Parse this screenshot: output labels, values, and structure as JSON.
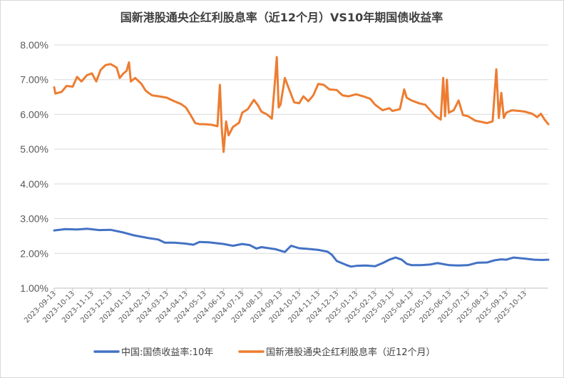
{
  "chart_data": {
    "type": "line",
    "title": "国新港股通央企红利股息率（近12个月）VS10年期国债收益率",
    "xlabel": "",
    "ylabel": "",
    "ylim": [
      1.0,
      8.0
    ],
    "yticks": [
      "8.00%",
      "7.00%",
      "6.00%",
      "5.00%",
      "4.00%",
      "3.00%",
      "2.00%",
      "1.00%"
    ],
    "ytick_values": [
      8,
      7,
      6,
      5,
      4,
      3,
      2,
      1
    ],
    "x_start": "2023-09-13",
    "x_end": "2025-11-20",
    "xticks": [
      "2023-09-13",
      "2023-10-13",
      "2023-11-13",
      "2023-12-13",
      "2024-01-13",
      "2024-02-13",
      "2024-03-13",
      "2024-04-13",
      "2024-05-13",
      "2024-06-13",
      "2024-07-13",
      "2024-08-13",
      "2024-09-13",
      "2024-10-13",
      "2024-11-13",
      "2024-12-13",
      "2025-01-13",
      "2025-02-13",
      "2025-03-13",
      "2025-04-13",
      "2025-05-13",
      "2025-06-13",
      "2025-07-13",
      "2025-08-13",
      "2025-09-13",
      "2025-10-13"
    ],
    "grid": true,
    "legend_position": "bottom",
    "series": [
      {
        "name": "中国:国债收益率:10年",
        "color": "#4472c4",
        "points": [
          [
            "2023-09-13",
            2.66
          ],
          [
            "2023-10-01",
            2.7
          ],
          [
            "2023-10-20",
            2.69
          ],
          [
            "2023-11-05",
            2.71
          ],
          [
            "2023-11-25",
            2.67
          ],
          [
            "2023-12-13",
            2.68
          ],
          [
            "2024-01-01",
            2.61
          ],
          [
            "2024-01-20",
            2.52
          ],
          [
            "2024-02-13",
            2.44
          ],
          [
            "2024-02-28",
            2.4
          ],
          [
            "2024-03-10",
            2.31
          ],
          [
            "2024-03-25",
            2.31
          ],
          [
            "2024-04-13",
            2.28
          ],
          [
            "2024-04-25",
            2.25
          ],
          [
            "2024-05-05",
            2.33
          ],
          [
            "2024-05-20",
            2.32
          ],
          [
            "2024-06-13",
            2.27
          ],
          [
            "2024-06-28",
            2.22
          ],
          [
            "2024-07-13",
            2.27
          ],
          [
            "2024-07-25",
            2.24
          ],
          [
            "2024-08-05",
            2.14
          ],
          [
            "2024-08-13",
            2.18
          ],
          [
            "2024-08-25",
            2.15
          ],
          [
            "2024-09-05",
            2.12
          ],
          [
            "2024-09-20",
            2.04
          ],
          [
            "2024-09-30",
            2.22
          ],
          [
            "2024-10-13",
            2.15
          ],
          [
            "2024-10-28",
            2.13
          ],
          [
            "2024-11-13",
            2.1
          ],
          [
            "2024-11-28",
            2.05
          ],
          [
            "2024-12-05",
            1.96
          ],
          [
            "2024-12-13",
            1.78
          ],
          [
            "2024-12-28",
            1.67
          ],
          [
            "2025-01-05",
            1.62
          ],
          [
            "2025-01-13",
            1.64
          ],
          [
            "2025-01-28",
            1.65
          ],
          [
            "2025-02-13",
            1.63
          ],
          [
            "2025-02-25",
            1.72
          ],
          [
            "2025-03-08",
            1.82
          ],
          [
            "2025-03-18",
            1.88
          ],
          [
            "2025-03-28",
            1.82
          ],
          [
            "2025-04-05",
            1.7
          ],
          [
            "2025-04-13",
            1.66
          ],
          [
            "2025-04-28",
            1.66
          ],
          [
            "2025-05-13",
            1.68
          ],
          [
            "2025-05-25",
            1.72
          ],
          [
            "2025-06-13",
            1.66
          ],
          [
            "2025-06-28",
            1.65
          ],
          [
            "2025-07-13",
            1.66
          ],
          [
            "2025-07-28",
            1.73
          ],
          [
            "2025-08-13",
            1.74
          ],
          [
            "2025-08-25",
            1.8
          ],
          [
            "2025-09-05",
            1.83
          ],
          [
            "2025-09-13",
            1.82
          ],
          [
            "2025-09-25",
            1.88
          ],
          [
            "2025-10-13",
            1.85
          ],
          [
            "2025-10-28",
            1.82
          ],
          [
            "2025-11-10",
            1.81
          ],
          [
            "2025-11-20",
            1.82
          ]
        ]
      },
      {
        "name": "国新港股通央企红利股息率（近12个月）",
        "color": "#ed7d31",
        "points": [
          [
            "2023-09-13",
            6.78
          ],
          [
            "2023-09-15",
            6.6
          ],
          [
            "2023-09-25",
            6.65
          ],
          [
            "2023-10-03",
            6.82
          ],
          [
            "2023-10-13",
            6.8
          ],
          [
            "2023-10-20",
            7.08
          ],
          [
            "2023-10-27",
            6.95
          ],
          [
            "2023-11-05",
            7.13
          ],
          [
            "2023-11-13",
            7.18
          ],
          [
            "2023-11-20",
            6.95
          ],
          [
            "2023-11-27",
            7.28
          ],
          [
            "2023-12-05",
            7.42
          ],
          [
            "2023-12-13",
            7.45
          ],
          [
            "2023-12-18",
            7.4
          ],
          [
            "2023-12-23",
            7.35
          ],
          [
            "2023-12-28",
            7.05
          ],
          [
            "2024-01-03",
            7.18
          ],
          [
            "2024-01-08",
            7.25
          ],
          [
            "2024-01-12",
            7.5
          ],
          [
            "2024-01-15",
            6.95
          ],
          [
            "2024-01-22",
            7.05
          ],
          [
            "2024-02-01",
            6.88
          ],
          [
            "2024-02-08",
            6.68
          ],
          [
            "2024-02-18",
            6.55
          ],
          [
            "2024-03-01",
            6.52
          ],
          [
            "2024-03-13",
            6.48
          ],
          [
            "2024-03-25",
            6.38
          ],
          [
            "2024-04-05",
            6.3
          ],
          [
            "2024-04-13",
            6.2
          ],
          [
            "2024-04-20",
            6.0
          ],
          [
            "2024-04-28",
            5.75
          ],
          [
            "2024-05-05",
            5.72
          ],
          [
            "2024-05-13",
            5.72
          ],
          [
            "2024-05-25",
            5.7
          ],
          [
            "2024-06-03",
            5.66
          ],
          [
            "2024-06-07",
            6.85
          ],
          [
            "2024-06-10",
            5.6
          ],
          [
            "2024-06-13",
            4.92
          ],
          [
            "2024-06-17",
            5.8
          ],
          [
            "2024-06-21",
            5.4
          ],
          [
            "2024-06-28",
            5.64
          ],
          [
            "2024-07-08",
            5.76
          ],
          [
            "2024-07-13",
            6.05
          ],
          [
            "2024-07-22",
            6.15
          ],
          [
            "2024-08-01",
            6.42
          ],
          [
            "2024-08-08",
            6.25
          ],
          [
            "2024-08-13",
            6.08
          ],
          [
            "2024-08-22",
            6.0
          ],
          [
            "2024-08-30",
            5.88
          ],
          [
            "2024-09-04",
            6.95
          ],
          [
            "2024-09-07",
            7.65
          ],
          [
            "2024-09-10",
            6.2
          ],
          [
            "2024-09-13",
            6.28
          ],
          [
            "2024-09-20",
            7.05
          ],
          [
            "2024-09-27",
            6.72
          ],
          [
            "2024-10-05",
            6.35
          ],
          [
            "2024-10-13",
            6.32
          ],
          [
            "2024-10-20",
            6.52
          ],
          [
            "2024-10-28",
            6.38
          ],
          [
            "2024-11-05",
            6.55
          ],
          [
            "2024-11-13",
            6.88
          ],
          [
            "2024-11-22",
            6.85
          ],
          [
            "2024-12-01",
            6.72
          ],
          [
            "2024-12-13",
            6.7
          ],
          [
            "2024-12-22",
            6.55
          ],
          [
            "2025-01-01",
            6.52
          ],
          [
            "2025-01-13",
            6.58
          ],
          [
            "2025-01-25",
            6.52
          ],
          [
            "2025-02-05",
            6.45
          ],
          [
            "2025-02-13",
            6.28
          ],
          [
            "2025-02-25",
            6.12
          ],
          [
            "2025-03-08",
            6.18
          ],
          [
            "2025-03-13",
            6.1
          ],
          [
            "2025-03-25",
            6.15
          ],
          [
            "2025-04-01",
            6.72
          ],
          [
            "2025-04-05",
            6.48
          ],
          [
            "2025-04-13",
            6.4
          ],
          [
            "2025-04-25",
            6.32
          ],
          [
            "2025-05-05",
            6.28
          ],
          [
            "2025-05-13",
            6.12
          ],
          [
            "2025-05-22",
            5.95
          ],
          [
            "2025-05-30",
            5.85
          ],
          [
            "2025-06-03",
            7.05
          ],
          [
            "2025-06-06",
            5.95
          ],
          [
            "2025-06-09",
            7.0
          ],
          [
            "2025-06-12",
            6.05
          ],
          [
            "2025-06-20",
            6.12
          ],
          [
            "2025-06-28",
            6.4
          ],
          [
            "2025-07-05",
            5.98
          ],
          [
            "2025-07-13",
            5.95
          ],
          [
            "2025-07-25",
            5.82
          ],
          [
            "2025-08-05",
            5.78
          ],
          [
            "2025-08-13",
            5.75
          ],
          [
            "2025-08-22",
            5.8
          ],
          [
            "2025-08-28",
            7.3
          ],
          [
            "2025-09-01",
            5.9
          ],
          [
            "2025-09-05",
            6.62
          ],
          [
            "2025-09-09",
            5.9
          ],
          [
            "2025-09-13",
            6.05
          ],
          [
            "2025-09-22",
            6.12
          ],
          [
            "2025-10-05",
            6.1
          ],
          [
            "2025-10-13",
            6.08
          ],
          [
            "2025-10-25",
            6.02
          ],
          [
            "2025-11-02",
            5.92
          ],
          [
            "2025-11-08",
            6.02
          ],
          [
            "2025-11-14",
            5.85
          ],
          [
            "2025-11-20",
            5.72
          ]
        ]
      }
    ]
  }
}
